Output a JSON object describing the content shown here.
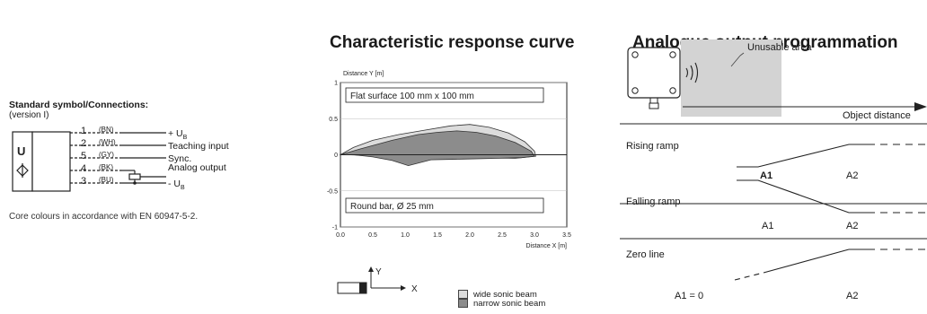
{
  "connections": {
    "title": "Standard symbol/Connections:",
    "subtitle": "(version I)",
    "symbol_letter": "U",
    "pins": [
      {
        "num": "1",
        "color": "(BN)",
        "label": "+ U",
        "sub": "B"
      },
      {
        "num": "2",
        "color": "(WH)",
        "label": "Teaching input",
        "sub": ""
      },
      {
        "num": "5",
        "color": "(GY)",
        "label": "Sync.",
        "sub": ""
      },
      {
        "num": "4",
        "color": "(BK)",
        "label": "Analog output",
        "sub": ""
      },
      {
        "num": "3",
        "color": "(BU)",
        "label": "- U",
        "sub": "B"
      }
    ],
    "note": "Core colours in accordance with EN 60947-5-2."
  },
  "response_curve": {
    "title": "Characteristic response curve",
    "legend": [
      {
        "label": "wide sonic beam",
        "color": "#dcdcdc"
      },
      {
        "label": "narrow sonic beam",
        "color": "#8c8c8c"
      }
    ],
    "axis_x_glyph": "X",
    "axis_y_glyph": "Y"
  },
  "chart_data": {
    "type": "area",
    "ylabel": "Distance Y [m]",
    "xlabel": "Distance X [m]",
    "xlim": [
      0,
      3.5
    ],
    "ylim": [
      -1,
      1
    ],
    "xticks": [
      "0.0",
      "0.5",
      "1.0",
      "1.5",
      "2.0",
      "2.5",
      "3.0",
      "3.5"
    ],
    "yticks": [
      "1",
      "0.5",
      "0",
      "-0.5",
      "-1"
    ],
    "annotations": [
      "Flat surface 100 mm x 100 mm",
      "Round bar, Ø 25 mm"
    ],
    "series": [
      {
        "name": "wide sonic beam",
        "color": "#dcdcdc",
        "points": [
          [
            0.0,
            0.0
          ],
          [
            0.2,
            0.1
          ],
          [
            0.5,
            0.2
          ],
          [
            0.9,
            0.28
          ],
          [
            1.3,
            0.34
          ],
          [
            1.7,
            0.4
          ],
          [
            2.0,
            0.42
          ],
          [
            2.3,
            0.38
          ],
          [
            2.6,
            0.3
          ],
          [
            2.85,
            0.18
          ],
          [
            3.0,
            0.05
          ],
          [
            3.02,
            -0.02
          ],
          [
            2.7,
            -0.05
          ],
          [
            2.2,
            -0.04
          ],
          [
            1.6,
            -0.03
          ],
          [
            1.0,
            -0.02
          ],
          [
            0.5,
            -0.01
          ],
          [
            0.1,
            0.0
          ]
        ]
      },
      {
        "name": "narrow sonic beam",
        "color": "#8c8c8c",
        "points": [
          [
            0.0,
            0.0
          ],
          [
            0.3,
            0.08
          ],
          [
            0.8,
            0.2
          ],
          [
            1.2,
            0.28
          ],
          [
            1.5,
            0.31
          ],
          [
            1.8,
            0.33
          ],
          [
            2.1,
            0.31
          ],
          [
            2.4,
            0.26
          ],
          [
            2.7,
            0.17
          ],
          [
            2.95,
            0.05
          ],
          [
            3.0,
            -0.02
          ],
          [
            2.8,
            -0.04
          ],
          [
            2.4,
            -0.05
          ],
          [
            1.9,
            -0.06
          ],
          [
            1.4,
            -0.07
          ],
          [
            1.05,
            -0.15
          ],
          [
            0.8,
            -0.08
          ],
          [
            0.5,
            -0.03
          ],
          [
            0.2,
            0.0
          ]
        ]
      }
    ]
  },
  "analogue": {
    "title": "Analogue output programmation",
    "unusable_label": "Unusable area",
    "axis_label": "Object distance",
    "ramps": [
      {
        "label": "Rising ramp",
        "a1": "A1",
        "a2": "A2"
      },
      {
        "label": "Falling ramp",
        "a1": "A1",
        "a2": "A2"
      },
      {
        "label": "Zero line",
        "a1": "A1 = 0",
        "a2": "A2"
      }
    ]
  }
}
